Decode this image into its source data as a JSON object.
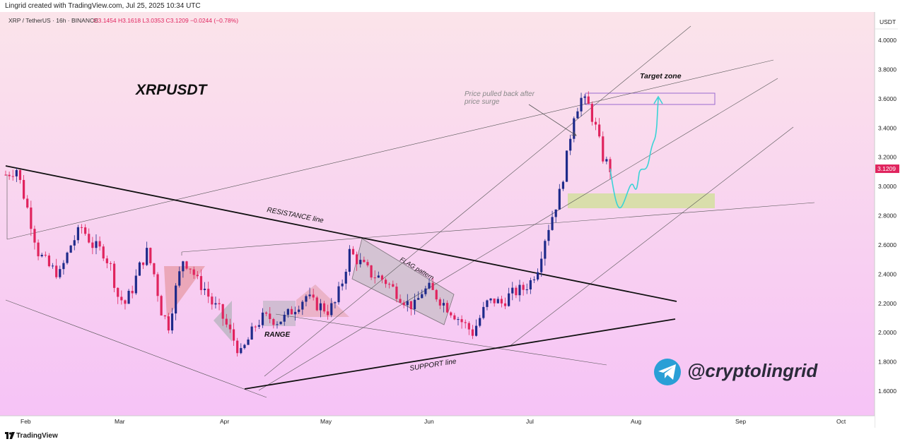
{
  "header": {
    "credit": "Lingrid created with TradingView.com, Jul 25, 2025 10:34 UTC"
  },
  "footer": {
    "brand": "TradingView"
  },
  "chart_data": {
    "type": "candlestick",
    "symbol_line": "XRP / TetherUS · 16h · BINANCE",
    "ohlc_label": "O3.1454  H3.1618  L3.0353  C3.1209  −0.0244 (−0.78%)",
    "title": "XRPUSDT",
    "currency": "USDT",
    "last_price": "3.1209",
    "y_ticks": [
      "4.0000",
      "3.8000",
      "3.6000",
      "3.4000",
      "3.2000",
      "3.0000",
      "2.8000",
      "2.6000",
      "2.4000",
      "2.2000",
      "2.0000",
      "1.8000",
      "1.6000"
    ],
    "y_tick_values": [
      4.0,
      3.8,
      3.6,
      3.4,
      3.2,
      3.0,
      2.8,
      2.6,
      2.4,
      2.2,
      2.0,
      1.8,
      1.6
    ],
    "x_ticks": [
      "Feb",
      "Mar",
      "Apr",
      "May",
      "Jun",
      "Jul",
      "Aug",
      "Sep",
      "Oct"
    ],
    "ylim": [
      1.45,
      4.2
    ],
    "close_path": [
      [
        0,
        3.08
      ],
      [
        3,
        3.12
      ],
      [
        6,
        2.85
      ],
      [
        9,
        2.55
      ],
      [
        12,
        2.45
      ],
      [
        15,
        2.4
      ],
      [
        18,
        2.6
      ],
      [
        21,
        2.72
      ],
      [
        24,
        2.6
      ],
      [
        27,
        2.55
      ],
      [
        29,
        2.45
      ],
      [
        31,
        2.25
      ],
      [
        33,
        2.2
      ],
      [
        35,
        2.3
      ],
      [
        37,
        2.45
      ],
      [
        39,
        2.55
      ],
      [
        41,
        2.4
      ],
      [
        43,
        2.15
      ],
      [
        45,
        2.05
      ],
      [
        47,
        2.3
      ],
      [
        49,
        2.5
      ],
      [
        51,
        2.45
      ],
      [
        53,
        2.35
      ],
      [
        55,
        2.3
      ],
      [
        57,
        2.2
      ],
      [
        59,
        2.15
      ],
      [
        61,
        2.05
      ],
      [
        63,
        1.95
      ],
      [
        65,
        1.85
      ],
      [
        67,
        1.95
      ],
      [
        69,
        2.05
      ],
      [
        71,
        2.1
      ],
      [
        73,
        2.1
      ],
      [
        75,
        2.08
      ],
      [
        77,
        2.1
      ],
      [
        79,
        2.15
      ],
      [
        81,
        2.2
      ],
      [
        83,
        2.25
      ],
      [
        85,
        2.2
      ],
      [
        87,
        2.18
      ],
      [
        89,
        2.15
      ],
      [
        91,
        2.2
      ],
      [
        93,
        2.35
      ],
      [
        95,
        2.55
      ],
      [
        97,
        2.5
      ],
      [
        99,
        2.45
      ],
      [
        101,
        2.4
      ],
      [
        103,
        2.38
      ],
      [
        105,
        2.35
      ],
      [
        107,
        2.3
      ],
      [
        109,
        2.25
      ],
      [
        111,
        2.2
      ],
      [
        113,
        2.18
      ],
      [
        115,
        2.28
      ],
      [
        117,
        2.3
      ],
      [
        119,
        2.25
      ],
      [
        121,
        2.2
      ],
      [
        123,
        2.15
      ],
      [
        125,
        2.1
      ],
      [
        127,
        2.05
      ],
      [
        129,
        2.0
      ],
      [
        131,
        2.1
      ],
      [
        133,
        2.2
      ],
      [
        135,
        2.22
      ],
      [
        137,
        2.2
      ],
      [
        139,
        2.25
      ],
      [
        141,
        2.28
      ],
      [
        143,
        2.3
      ],
      [
        145,
        2.35
      ],
      [
        147,
        2.45
      ],
      [
        149,
        2.65
      ],
      [
        151,
        2.8
      ],
      [
        153,
        2.95
      ],
      [
        155,
        3.2
      ],
      [
        157,
        3.5
      ],
      [
        159,
        3.6
      ],
      [
        161,
        3.55
      ],
      [
        163,
        3.4
      ],
      [
        165,
        3.2
      ],
      [
        167,
        3.12
      ]
    ],
    "x_dates": [
      "2025-01-25",
      "2025-07-25"
    ],
    "annotations": {
      "resistance": "RESISTANCE line",
      "support": "SUPPORT line",
      "flag": "FLAG pattern",
      "range": "RANGE",
      "target": "Target zone",
      "pullback": "Price pulled back after price surge"
    },
    "pullback_lines": [
      "Price pulled back after",
      "price surge"
    ],
    "watermark": "@cryptolingrid",
    "colors": {
      "up": "#1e2a8a",
      "down": "#e0245e",
      "bg_top": "#fbe3ea",
      "bg_bottom": "#f6c4f4",
      "last_price_bg": "#e0245e",
      "projection": "#3ad3d6",
      "target_box": "#9a6ad0",
      "entry_box": "#d5dfa3",
      "triangle": "#d9a0a8",
      "flag_fill": "#c9bfc9",
      "telegram": "#2a9fd6"
    }
  }
}
